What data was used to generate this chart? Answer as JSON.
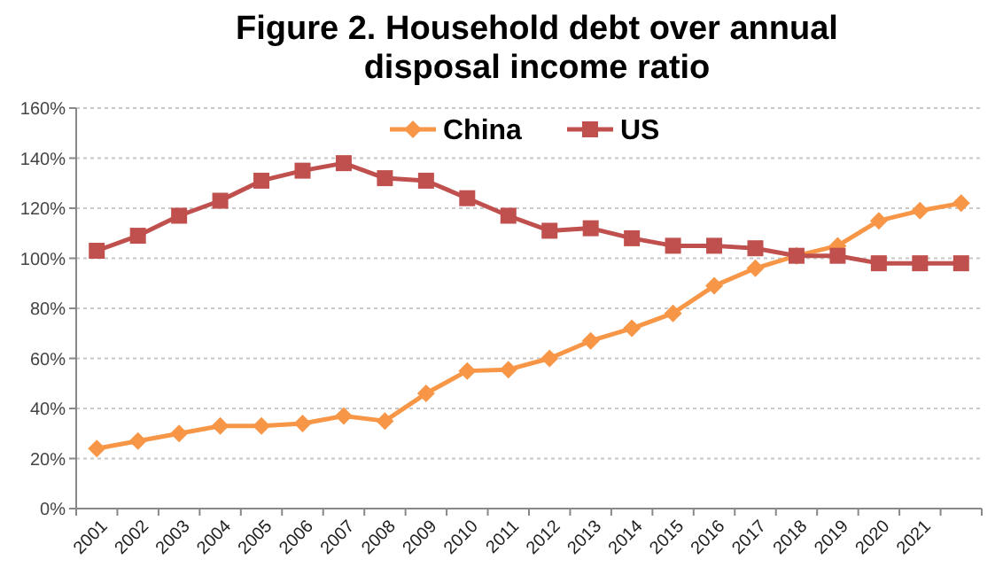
{
  "chart_data": {
    "type": "line",
    "title": "Figure 2. Household debt over annual disposal income ratio",
    "categories": [
      "2001",
      "2002",
      "2003",
      "2004",
      "2005",
      "2006",
      "2007",
      "2008",
      "2009",
      "2010",
      "2011",
      "2012",
      "2013",
      "2014",
      "2015",
      "2016",
      "2017",
      "2018",
      "2019",
      "2020",
      "2021",
      null
    ],
    "series": [
      {
        "name": "China",
        "color": "#f79646",
        "marker": "diamond",
        "values": [
          24,
          27,
          30,
          33,
          33,
          34,
          37,
          35,
          46,
          55,
          55.5,
          60,
          67,
          72,
          78,
          89,
          96,
          101,
          105,
          115,
          119,
          122
        ]
      },
      {
        "name": "US",
        "color": "#c0504d",
        "marker": "square",
        "values": [
          103,
          109,
          117,
          123,
          131,
          135,
          138,
          132,
          131,
          124,
          117,
          111,
          112,
          108,
          105,
          105,
          104,
          101,
          101,
          98,
          98,
          98
        ]
      }
    ],
    "ylim": [
      0,
      160
    ],
    "yticks": [
      {
        "value": 0,
        "label": "0%"
      },
      {
        "value": 20,
        "label": "20%"
      },
      {
        "value": 40,
        "label": "40%"
      },
      {
        "value": 60,
        "label": "60%"
      },
      {
        "value": 80,
        "label": "80%"
      },
      {
        "value": 100,
        "label": "100%"
      },
      {
        "value": 120,
        "label": "120%"
      },
      {
        "value": 140,
        "label": "140%"
      },
      {
        "value": 160,
        "label": "160%"
      }
    ],
    "grid": "y",
    "legend": "top",
    "line_style": "solid"
  }
}
